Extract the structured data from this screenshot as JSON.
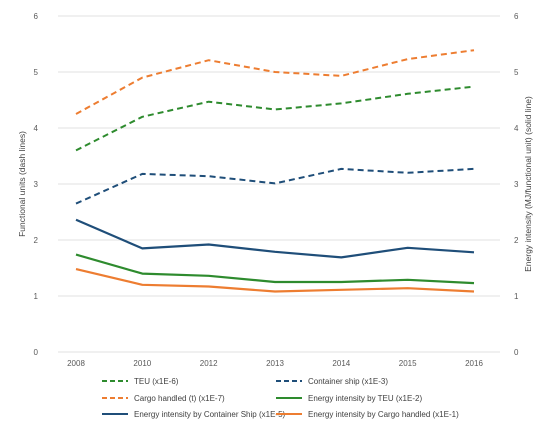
{
  "chart_data": {
    "type": "line",
    "x": [
      "2008",
      "2010",
      "2012",
      "2013",
      "2014",
      "2015",
      "2016"
    ],
    "ylim_left": [
      0,
      6
    ],
    "ylim_right": [
      0,
      6
    ],
    "yticks": [
      "0",
      "1",
      "2",
      "3",
      "4",
      "5",
      "6"
    ],
    "ylabel_left": "Functional units (dash lines)",
    "ylabel_right": "Energy intensity (MJ/functional unit) (solid line)",
    "grid": "horizontal",
    "legend_position": "bottom",
    "series": [
      {
        "name": "TEU (x1E-6)",
        "style": "dashed",
        "color": "#2e8b2e",
        "values": [
          3.6,
          4.2,
          4.47,
          4.33,
          4.44,
          4.61,
          4.74
        ]
      },
      {
        "name": "Container ship (x1E-3)",
        "style": "dashed",
        "color": "#1f4e79",
        "values": [
          2.65,
          3.18,
          3.14,
          3.01,
          3.27,
          3.2,
          3.27
        ]
      },
      {
        "name": "Cargo handled (t) (x1E-7)",
        "style": "dashed",
        "color": "#ed7d31",
        "values": [
          4.25,
          4.9,
          5.21,
          5.0,
          4.93,
          5.23,
          5.39
        ]
      },
      {
        "name": "Energy intensity by TEU (x1E-2)",
        "style": "solid",
        "color": "#2e8b2e",
        "values": [
          1.74,
          1.4,
          1.36,
          1.25,
          1.25,
          1.29,
          1.23
        ]
      },
      {
        "name": "Energy intensity by Container Ship (x1E-5)",
        "style": "solid",
        "color": "#1f4e79",
        "values": [
          2.36,
          1.85,
          1.92,
          1.79,
          1.69,
          1.86,
          1.78
        ]
      },
      {
        "name": "Energy intensity by Cargo handled (x1E-1)",
        "style": "solid",
        "color": "#ed7d31",
        "values": [
          1.48,
          1.2,
          1.17,
          1.08,
          1.11,
          1.14,
          1.08
        ]
      }
    ]
  }
}
